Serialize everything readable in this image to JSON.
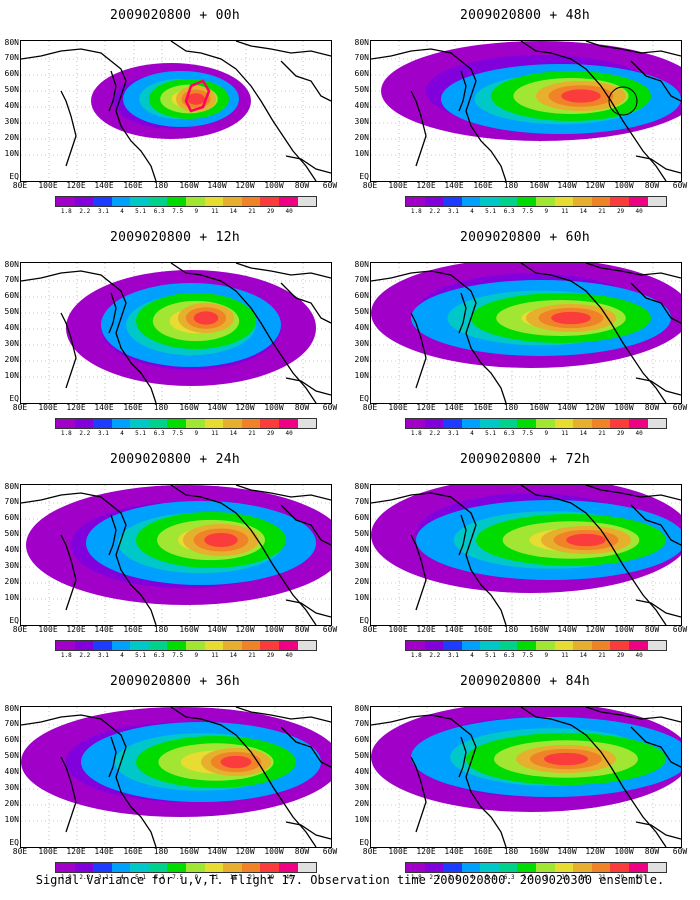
{
  "panels": [
    {
      "title": "2009020800 + 00h"
    },
    {
      "title": "2009020800 + 48h"
    },
    {
      "title": "2009020800 + 12h"
    },
    {
      "title": "2009020800 + 60h"
    },
    {
      "title": "2009020800 + 24h"
    },
    {
      "title": "2009020800 + 72h"
    },
    {
      "title": "2009020800 + 36h"
    },
    {
      "title": "2009020800 + 84h"
    }
  ],
  "lat_labels": [
    "80N",
    "70N",
    "60N",
    "50N",
    "40N",
    "30N",
    "20N",
    "10N",
    "EQ"
  ],
  "lon_labels": [
    "80E",
    "100E",
    "120E",
    "140E",
    "160E",
    "180",
    "160W",
    "140W",
    "120W",
    "100W",
    "80W",
    "60W"
  ],
  "colorbar": {
    "labels": [
      "1.8",
      "2.2",
      "3.1",
      "4",
      "5.1",
      "6.3",
      "7.5",
      "9",
      "11",
      "14",
      "21",
      "29",
      "40"
    ],
    "colors": [
      "#a000c8",
      "#8200dc",
      "#1e3cff",
      "#00a0ff",
      "#00c8c8",
      "#00d28c",
      "#00dc00",
      "#a0e632",
      "#e6dc32",
      "#e6af2d",
      "#f08228",
      "#fa3c3c",
      "#f00082",
      "#e0e0e0"
    ]
  },
  "footer": "Signal Variance for u,v,T. Flight 17. Observation time 2009020800. 2009020300 ensemble."
}
